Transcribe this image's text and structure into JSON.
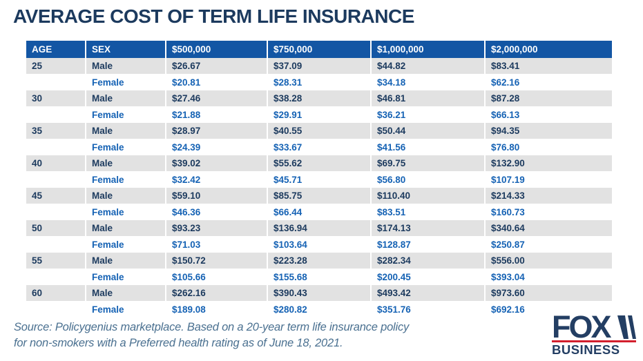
{
  "title": "AVERAGE COST OF TERM LIFE INSURANCE",
  "chart_data": {
    "type": "table",
    "title": "AVERAGE COST OF TERM LIFE INSURANCE",
    "columns": [
      "AGE",
      "SEX",
      "$500,000",
      "$750,000",
      "$1,000,000",
      "$2,000,000"
    ],
    "rows": [
      [
        "25",
        "Male",
        "$26.67",
        "$37.09",
        "$44.82",
        "$83.41"
      ],
      [
        "",
        "Female",
        "$20.81",
        "$28.31",
        "$34.18",
        "$62.16"
      ],
      [
        "30",
        "Male",
        "$27.46",
        "$38.28",
        "$46.81",
        "$87.28"
      ],
      [
        "",
        "Female",
        "$21.88",
        "$29.91",
        "$36.21",
        "$66.13"
      ],
      [
        "35",
        "Male",
        "$28.97",
        "$40.55",
        "$50.44",
        "$94.35"
      ],
      [
        "",
        "Female",
        "$24.39",
        "$33.67",
        "$41.56",
        "$76.80"
      ],
      [
        "40",
        "Male",
        "$39.02",
        "$55.62",
        "$69.75",
        "$132.90"
      ],
      [
        "",
        "Female",
        "$32.42",
        "$45.71",
        "$56.80",
        "$107.19"
      ],
      [
        "45",
        "Male",
        "$59.10",
        "$85.75",
        "$110.40",
        "$214.33"
      ],
      [
        "",
        "Female",
        "$46.36",
        "$66.44",
        "$83.51",
        "$160.73"
      ],
      [
        "50",
        "Male",
        "$93.23",
        "$136.94",
        "$174.13",
        "$340.64"
      ],
      [
        "",
        "Female",
        "$71.03",
        "$103.64",
        "$128.87",
        "$250.87"
      ],
      [
        "55",
        "Male",
        "$150.72",
        "$223.28",
        "$282.34",
        "$556.00"
      ],
      [
        "",
        "Female",
        "$105.66",
        "$155.68",
        "$200.45",
        "$393.04"
      ],
      [
        "60",
        "Male",
        "$262.16",
        "$390.43",
        "$493.42",
        "$973.60"
      ],
      [
        "",
        "Female",
        "$189.08",
        "$280.82",
        "$351.76",
        "$692.16"
      ]
    ]
  },
  "source": "Source: Policygenius marketplace. Based on a 20-year term life insurance policy for non-smokers with a Preferred health rating as of June 18, 2021.",
  "logo": {
    "fox": "FOX",
    "business": "BUSINESS"
  },
  "colors": {
    "header_bg": "#1356a4",
    "male_row_bg": "#e2e2e2",
    "male_text": "#1c3a5e",
    "female_text": "#1562b4",
    "title_text": "#1c3a5e",
    "source_text": "#4a7090",
    "logo_navy": "#233e63",
    "logo_red": "#d31f2d"
  }
}
